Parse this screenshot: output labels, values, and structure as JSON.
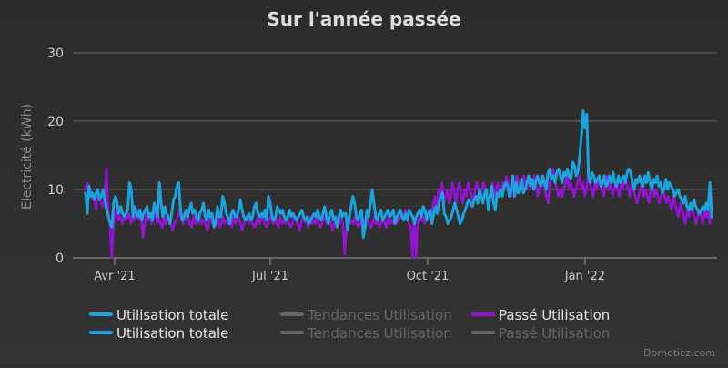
{
  "chart_data": {
    "type": "line",
    "title": "Sur l'année passée",
    "ylabel": "Electricité (kWh)",
    "xlabel": "",
    "ylim": [
      0,
      30
    ],
    "yticks": [
      0,
      10,
      20,
      30
    ],
    "xlim": [
      0,
      366
    ],
    "xticks": [
      {
        "label": "Avr '21",
        "day": 17
      },
      {
        "label": "Jul '21",
        "day": 108
      },
      {
        "label": "Oct '21",
        "day": 200
      },
      {
        "label": "Jan '22",
        "day": 292
      }
    ],
    "series": [
      {
        "name": "Utilisation totale",
        "color": "#1aa3dc",
        "y": [
          9.5,
          6.5,
          10.5,
          9,
          9.5,
          8.5,
          9.5,
          10,
          8.5,
          9,
          10,
          8.5,
          7,
          6,
          5,
          4.5,
          8,
          9,
          8,
          6.5,
          7.5,
          6.5,
          6,
          6.5,
          7,
          11,
          10,
          6,
          7.5,
          6.5,
          6,
          7,
          5.5,
          6.5,
          7,
          7.5,
          6,
          6.5,
          5.5,
          8,
          7,
          6,
          11,
          8,
          6,
          7.5,
          6.5,
          6,
          5,
          6.5,
          8.5,
          9,
          10.5,
          11,
          7,
          5.5,
          6,
          7,
          6,
          7,
          8,
          6.5,
          7,
          6,
          5.5,
          6.5,
          7,
          8,
          6,
          5.5,
          7,
          6,
          6.5,
          4.5,
          5,
          7.5,
          6,
          6,
          9,
          8,
          6.5,
          6,
          5,
          6.5,
          7,
          6,
          6,
          7,
          8.5,
          7,
          6,
          5.5,
          6,
          6.5,
          5.5,
          6,
          7.5,
          8,
          6.5,
          6,
          6.5,
          6,
          7,
          5.5,
          9,
          8,
          6,
          5.5,
          6,
          7.5,
          7,
          6.5,
          7,
          6,
          5.5,
          6,
          7,
          6,
          6.5,
          6,
          5.5,
          6,
          6.5,
          7,
          6,
          5.5,
          6,
          5,
          5.5,
          6,
          6.5,
          6,
          7,
          6,
          5.5,
          6.5,
          7.5,
          6,
          5,
          6.5,
          7,
          5.5,
          6,
          4.5,
          6,
          7,
          6,
          6.5,
          6.5,
          4,
          6,
          7.5,
          9,
          8,
          6,
          5.5,
          6.5,
          7,
          3,
          4.5,
          7,
          6,
          8,
          10,
          8,
          6,
          5.5,
          6.5,
          7,
          5.5,
          6,
          6.5,
          7,
          6,
          6.5,
          7,
          5,
          6,
          6.5,
          7,
          6,
          5.5,
          6.5,
          5.5,
          7,
          6.5,
          6,
          5,
          6,
          6.5,
          7,
          6,
          7.5,
          7,
          5.5,
          6.5,
          7,
          5,
          6.5,
          7.5,
          6.5,
          8,
          9,
          9.5,
          6.5,
          6,
          5,
          5.5,
          6,
          7,
          8,
          7,
          6,
          5,
          5.5,
          6.5,
          7,
          8,
          8.5,
          8,
          7.5,
          8.5,
          9,
          8,
          10,
          9,
          8,
          9.5,
          10,
          7,
          9,
          10.5,
          8,
          7,
          9.5,
          9,
          10,
          9,
          10.5,
          11,
          10.5,
          9,
          10,
          12,
          9,
          11,
          9.5,
          10,
          11.5,
          9.5,
          10,
          11,
          12,
          10.5,
          11.5,
          10,
          11,
          12,
          11,
          10.5,
          12,
          11,
          10,
          12.5,
          13,
          11.5,
          12,
          11,
          12.5,
          13,
          12,
          11,
          12.5,
          12,
          13,
          12,
          11.5,
          14,
          13.5,
          12,
          12.5,
          15,
          18,
          21.5,
          19,
          21,
          12,
          11,
          12.5,
          12,
          11,
          11.5,
          12,
          10.5,
          11,
          12,
          10.5,
          11,
          12,
          11,
          12.5,
          11,
          10.5,
          12,
          11,
          11.5,
          12,
          11,
          12.5,
          13,
          12.5,
          11,
          10,
          11.5,
          11,
          12,
          11,
          10.5,
          12,
          11,
          12.5,
          11,
          10,
          11.5,
          11,
          12,
          10.5,
          11,
          9.5,
          10,
          11.5,
          10,
          11,
          10.5,
          10,
          9,
          9.5,
          10,
          9,
          8.5,
          8,
          9,
          7.5,
          7,
          8,
          7,
          8.5,
          7.5,
          7,
          6.5,
          7,
          7.5,
          7,
          8,
          7,
          11,
          6
        ]
      },
      {
        "name": "Passé Utilisation",
        "color": "#9513d6",
        "y": [
          10,
          11,
          9,
          10,
          8.5,
          9,
          7,
          10,
          9,
          8,
          7.5,
          9,
          13,
          7,
          5,
          0,
          4.5,
          6,
          7,
          5.5,
          6,
          5,
          6,
          5.5,
          6,
          6.5,
          5,
          6,
          5.5,
          6,
          7,
          5.5,
          6,
          3,
          5,
          6.5,
          5.5,
          6,
          5,
          6,
          7,
          5,
          6,
          5,
          4.5,
          6,
          5,
          6,
          5.5,
          5,
          4,
          5,
          5.5,
          6,
          7,
          6,
          5,
          6,
          5.5,
          6,
          5,
          4.5,
          6,
          5,
          6.5,
          5,
          6,
          5,
          5.5,
          5,
          4,
          5,
          6.5,
          5,
          5.5,
          5,
          6,
          4.5,
          5,
          6,
          5,
          5.5,
          5,
          6,
          4.5,
          6,
          5,
          5.5,
          6,
          5,
          4,
          5,
          6,
          5.5,
          5,
          6,
          5,
          4.5,
          5,
          6,
          5,
          5.5,
          6,
          5,
          4.5,
          5,
          6,
          5.5,
          5,
          6,
          5,
          4.5,
          6,
          5,
          5.5,
          5,
          6,
          5,
          4.5,
          5,
          6,
          5.5,
          5,
          4,
          5,
          6,
          5.5,
          5,
          4.5,
          6,
          5,
          5.5,
          5,
          6,
          5,
          4.5,
          5,
          6,
          5.5,
          5,
          6,
          5,
          4,
          5,
          6,
          5.5,
          5,
          6,
          5,
          0.5,
          4.5,
          6,
          5,
          5.5,
          5,
          6,
          5,
          4.5,
          5,
          6,
          5.5,
          5,
          6,
          5,
          4.5,
          5,
          6,
          5,
          5.5,
          4.5,
          5,
          6,
          5,
          4.5,
          6,
          5,
          5.5,
          5,
          6,
          5,
          5.5,
          6,
          6.5,
          6,
          7,
          6,
          5,
          4.5,
          0,
          6,
          0,
          5,
          6,
          5.5,
          6,
          5,
          6,
          7,
          6,
          6.5,
          8,
          9,
          7,
          10,
          9.5,
          11,
          8,
          9,
          10,
          8,
          9,
          11,
          9.5,
          8,
          10,
          11,
          9,
          8,
          10,
          9,
          11,
          10,
          9,
          8,
          10,
          11,
          10,
          9,
          10,
          11,
          10,
          9,
          8,
          10,
          11,
          9,
          10,
          11,
          9,
          10,
          11,
          10,
          12,
          11,
          10,
          9,
          11,
          10,
          12,
          11,
          10,
          11,
          12,
          11,
          10,
          12,
          11,
          10,
          12,
          11,
          9,
          10,
          12,
          11,
          10,
          9,
          8,
          11,
          12,
          13,
          11,
          10,
          9,
          10,
          9,
          10,
          11,
          12,
          10,
          11,
          10,
          9,
          10,
          11,
          12,
          10,
          11,
          9,
          10,
          12,
          11,
          10,
          9,
          11,
          10,
          12,
          11,
          10,
          9,
          11,
          12,
          10,
          11,
          9,
          10,
          11,
          10,
          9,
          11,
          10,
          12,
          11,
          10,
          9,
          11,
          10,
          9,
          8,
          9,
          10,
          11,
          9,
          10,
          9,
          8,
          10,
          11,
          9,
          10,
          9,
          8,
          9,
          10,
          9,
          8,
          9,
          8,
          7,
          9,
          8,
          7,
          6,
          8,
          7,
          6,
          5,
          7,
          6,
          8,
          7,
          6,
          5,
          6,
          7,
          6,
          5,
          7,
          6,
          7,
          5,
          9
        ]
      }
    ],
    "legend": {
      "position": "bottom",
      "entries": [
        {
          "label": "Utilisation totale",
          "color": "#1aa3dc",
          "active": true
        },
        {
          "label": "Utilisation totale",
          "color": "#1aa3dc",
          "active": true
        },
        {
          "label": "Tendances Utilisation",
          "color": "#666666",
          "active": false
        },
        {
          "label": "Tendances Utilisation",
          "color": "#666666",
          "active": false
        },
        {
          "label": "Passé Utilisation",
          "color": "#9513d6",
          "active": true
        },
        {
          "label": "Passé Utilisation",
          "color": "#666666",
          "active": false
        }
      ]
    },
    "credits": "Domoticz.com"
  }
}
